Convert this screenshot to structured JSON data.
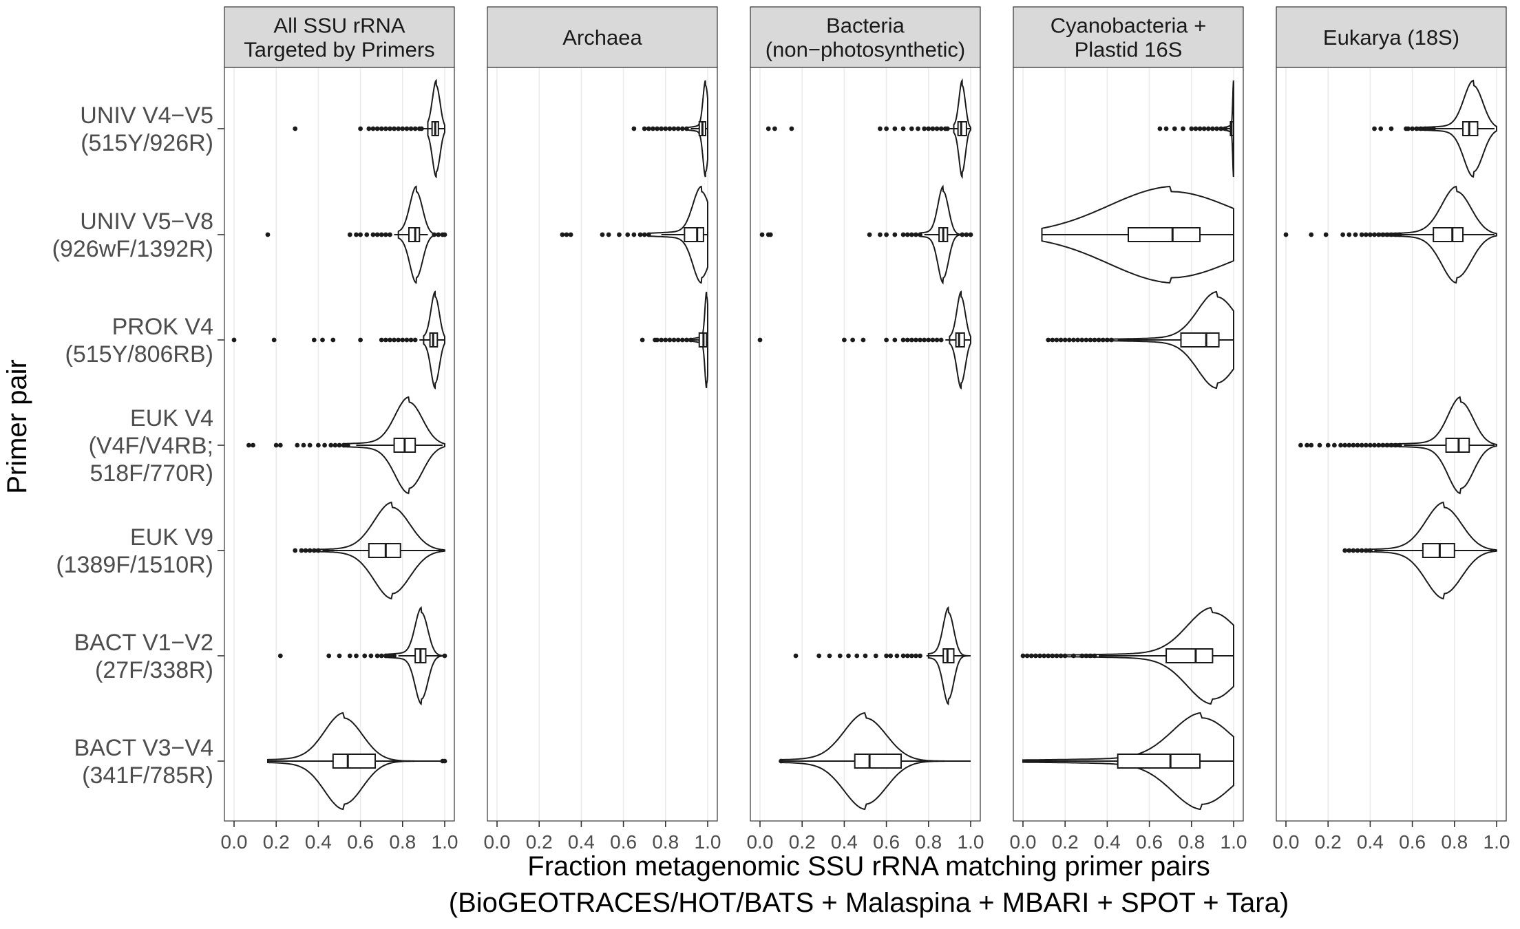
{
  "chart_data": {
    "type": "violin",
    "xlabel_lines": [
      "Fraction metagenomic SSU rRNA matching primer pairs",
      "(BioGEOTRACES/HOT/BATS + Malaspina + MBARI + SPOT + Tara)"
    ],
    "ylabel": "Primer pair",
    "xlim": [
      0,
      1
    ],
    "x_ticks": [
      "0.0",
      "0.2",
      "0.4",
      "0.6",
      "0.8",
      "1.0"
    ],
    "x_tick_values": [
      0,
      0.2,
      0.4,
      0.6,
      0.8,
      1.0
    ],
    "grid": true,
    "legend": "none",
    "facets": [
      {
        "label_lines": [
          "All SSU rRNA",
          "Targeted by Primers"
        ]
      },
      {
        "label_lines": [
          "Archaea"
        ]
      },
      {
        "label_lines": [
          "Bacteria",
          "(non−photosynthetic)"
        ]
      },
      {
        "label_lines": [
          "Cyanobacteria +",
          "Plastid 16S"
        ]
      },
      {
        "label_lines": [
          "Eukarya (18S)"
        ]
      }
    ],
    "primer_pairs": [
      {
        "label_lines": [
          "UNIV   V4−V5",
          "(515Y/926R)"
        ]
      },
      {
        "label_lines": [
          "UNIV V5−V8",
          "(926wF/1392R)"
        ]
      },
      {
        "label_lines": [
          "PROK V4",
          "(515Y/806RB)"
        ]
      },
      {
        "label_lines": [
          "EUK   V4",
          "(V4F/V4RB;",
          "518F/770R)"
        ]
      },
      {
        "label_lines": [
          "EUK V9",
          "(1389F/1510R)"
        ]
      },
      {
        "label_lines": [
          "BACT   V1−V2",
          "(27F/338R)"
        ]
      },
      {
        "label_lines": [
          "BACT V3−V4",
          "(341F/785R)"
        ]
      }
    ],
    "distributions": [
      {
        "facet": 0,
        "row": 0,
        "min": 0.92,
        "max": 1.0,
        "q1": 0.94,
        "median": 0.955,
        "q3": 0.97,
        "whisker_low": 0.9,
        "whisker_high": 1.0,
        "mode": 0.96,
        "spread": 0.018,
        "tail": 0.08,
        "outliers": [
          0.29,
          0.6,
          0.64,
          0.66,
          0.68,
          0.7,
          0.72,
          0.74,
          0.76,
          0.78,
          0.8,
          0.82,
          0.84,
          0.86,
          0.88,
          0.89
        ]
      },
      {
        "facet": 0,
        "row": 1,
        "min": 0.78,
        "max": 1.0,
        "q1": 0.83,
        "median": 0.86,
        "q3": 0.88,
        "whisker_low": 0.76,
        "whisker_high": 0.92,
        "mode": 0.865,
        "spread": 0.03,
        "tail": 0.12,
        "outliers": [
          0.16,
          0.55,
          0.58,
          0.6,
          0.63,
          0.66,
          0.68,
          0.7,
          0.72,
          0.74,
          0.95,
          0.97,
          0.99,
          1.0
        ]
      },
      {
        "facet": 0,
        "row": 2,
        "min": 0.9,
        "max": 1.0,
        "q1": 0.93,
        "median": 0.945,
        "q3": 0.965,
        "whisker_low": 0.88,
        "whisker_high": 1.0,
        "mode": 0.955,
        "spread": 0.02,
        "tail": 0.1,
        "outliers": [
          0.0,
          0.19,
          0.38,
          0.42,
          0.47,
          0.6,
          0.7,
          0.72,
          0.74,
          0.76,
          0.78,
          0.8,
          0.82,
          0.84,
          0.86
        ]
      },
      {
        "facet": 0,
        "row": 3,
        "min": 0.52,
        "max": 1.0,
        "q1": 0.76,
        "median": 0.81,
        "q3": 0.86,
        "whisker_low": 0.58,
        "whisker_high": 0.99,
        "mode": 0.83,
        "spread": 0.065,
        "tail": 0.25,
        "outliers": [
          0.07,
          0.09,
          0.2,
          0.22,
          0.3,
          0.33,
          0.36,
          0.4,
          0.43,
          0.46,
          0.48,
          0.5,
          0.52,
          0.54
        ]
      },
      {
        "facet": 0,
        "row": 4,
        "min": 0.38,
        "max": 1.0,
        "q1": 0.64,
        "median": 0.72,
        "q3": 0.79,
        "whisker_low": 0.42,
        "whisker_high": 0.99,
        "mode": 0.75,
        "spread": 0.085,
        "tail": 0.22,
        "outliers": [
          0.29,
          0.32,
          0.34,
          0.36,
          0.38,
          0.4
        ]
      },
      {
        "facet": 0,
        "row": 5,
        "min": 0.72,
        "max": 1.0,
        "q1": 0.86,
        "median": 0.885,
        "q3": 0.91,
        "whisker_low": 0.78,
        "whisker_high": 0.99,
        "mode": 0.89,
        "spread": 0.03,
        "tail": 0.14,
        "outliers": [
          0.22,
          0.45,
          0.5,
          0.55,
          0.58,
          0.62,
          0.65,
          0.68,
          0.7,
          0.72,
          0.74,
          0.76,
          1.0
        ]
      },
      {
        "facet": 0,
        "row": 6,
        "min": 0.16,
        "max": 1.0,
        "q1": 0.47,
        "median": 0.54,
        "q3": 0.67,
        "whisker_low": 0.16,
        "whisker_high": 0.99,
        "mode": 0.52,
        "spread": 0.09,
        "tail": 0.28,
        "outliers": [
          0.99,
          1.0
        ]
      },
      {
        "facet": 1,
        "row": 0,
        "min": 0.9,
        "max": 1.0,
        "q1": 0.96,
        "median": 0.975,
        "q3": 0.99,
        "whisker_low": 0.92,
        "whisker_high": 1.0,
        "mode": 0.99,
        "spread": 0.012,
        "tail": 0.06,
        "outliers": [
          0.65,
          0.7,
          0.72,
          0.74,
          0.76,
          0.78,
          0.8,
          0.82,
          0.84,
          0.86,
          0.88,
          0.9
        ]
      },
      {
        "facet": 1,
        "row": 1,
        "min": 0.72,
        "max": 1.0,
        "q1": 0.89,
        "median": 0.95,
        "q3": 0.98,
        "whisker_low": 0.78,
        "whisker_high": 1.0,
        "mode": 0.97,
        "spread": 0.04,
        "tail": 0.2,
        "outliers": [
          0.31,
          0.33,
          0.35,
          0.5,
          0.53,
          0.58,
          0.62,
          0.65,
          0.68,
          0.7,
          0.72
        ]
      },
      {
        "facet": 1,
        "row": 2,
        "min": 0.9,
        "max": 1.0,
        "q1": 0.96,
        "median": 0.98,
        "q3": 0.995,
        "whisker_low": 0.93,
        "whisker_high": 1.0,
        "mode": 0.995,
        "spread": 0.008,
        "tail": 0.05,
        "outliers": [
          0.69,
          0.75,
          0.76,
          0.78,
          0.8,
          0.82,
          0.84,
          0.86,
          0.88,
          0.9,
          0.92
        ]
      },
      {
        "facet": 2,
        "row": 0,
        "min": 0.92,
        "max": 1.0,
        "q1": 0.94,
        "median": 0.955,
        "q3": 0.98,
        "whisker_low": 0.9,
        "whisker_high": 1.0,
        "mode": 0.96,
        "spread": 0.015,
        "tail": 0.06,
        "outliers": [
          0.04,
          0.07,
          0.15,
          0.57,
          0.6,
          0.64,
          0.68,
          0.72,
          0.75,
          0.78,
          0.8,
          0.82,
          0.84,
          0.86,
          0.88,
          0.89
        ]
      },
      {
        "facet": 2,
        "row": 1,
        "min": 0.76,
        "max": 1.0,
        "q1": 0.85,
        "median": 0.87,
        "q3": 0.89,
        "whisker_low": 0.78,
        "whisker_high": 0.95,
        "mode": 0.87,
        "spread": 0.025,
        "tail": 0.1,
        "outliers": [
          0.01,
          0.04,
          0.05,
          0.52,
          0.57,
          0.6,
          0.64,
          0.68,
          0.7,
          0.72,
          0.74,
          0.76,
          0.96,
          0.98,
          1.0
        ]
      },
      {
        "facet": 2,
        "row": 2,
        "min": 0.9,
        "max": 1.0,
        "q1": 0.93,
        "median": 0.945,
        "q3": 0.97,
        "whisker_low": 0.88,
        "whisker_high": 1.0,
        "mode": 0.955,
        "spread": 0.02,
        "tail": 0.08,
        "outliers": [
          0.0,
          0.4,
          0.44,
          0.49,
          0.6,
          0.64,
          0.68,
          0.7,
          0.72,
          0.74,
          0.76,
          0.78,
          0.8,
          0.82,
          0.84,
          0.86
        ]
      },
      {
        "facet": 2,
        "row": 5,
        "min": 0.8,
        "max": 1.0,
        "q1": 0.87,
        "median": 0.89,
        "q3": 0.92,
        "whisker_low": 0.79,
        "whisker_high": 0.99,
        "mode": 0.895,
        "spread": 0.025,
        "tail": 0.1,
        "outliers": [
          0.17,
          0.28,
          0.33,
          0.38,
          0.42,
          0.46,
          0.5,
          0.55,
          0.6,
          0.62,
          0.65,
          0.68,
          0.7,
          0.72,
          0.74,
          0.76
        ]
      },
      {
        "facet": 2,
        "row": 6,
        "min": 0.1,
        "max": 1.0,
        "q1": 0.45,
        "median": 0.52,
        "q3": 0.67,
        "whisker_low": 0.11,
        "whisker_high": 0.99,
        "mode": 0.5,
        "spread": 0.1,
        "tail": 0.3,
        "outliers": [
          0.1
        ]
      },
      {
        "facet": 3,
        "row": 0,
        "min": 0.95,
        "max": 1.0,
        "q1": 0.985,
        "median": 0.99,
        "q3": 1.0,
        "whisker_low": 0.97,
        "whisker_high": 1.0,
        "mode": 1.0,
        "spread": 0.004,
        "tail": 0.03,
        "outliers": [
          0.65,
          0.68,
          0.72,
          0.76,
          0.8,
          0.82,
          0.84,
          0.86,
          0.88,
          0.9,
          0.92,
          0.94,
          0.96
        ]
      },
      {
        "facet": 3,
        "row": 1,
        "min": 0.09,
        "max": 1.0,
        "q1": 0.5,
        "median": 0.71,
        "q3": 0.84,
        "whisker_low": 0.09,
        "whisker_high": 1.0,
        "mode": 0.7,
        "spread": 0.3,
        "tail": 0.35,
        "outliers": []
      },
      {
        "facet": 3,
        "row": 2,
        "min": 0.3,
        "max": 1.0,
        "q1": 0.75,
        "median": 0.87,
        "q3": 0.93,
        "whisker_low": 0.45,
        "whisker_high": 1.0,
        "mode": 0.92,
        "spread": 0.09,
        "tail": 0.28,
        "outliers": [
          0.12,
          0.14,
          0.16,
          0.18,
          0.2,
          0.22,
          0.24,
          0.26,
          0.28,
          0.3,
          0.32,
          0.34,
          0.36,
          0.38,
          0.4,
          0.42
        ]
      },
      {
        "facet": 3,
        "row": 5,
        "min": 0.0,
        "max": 1.0,
        "q1": 0.68,
        "median": 0.82,
        "q3": 0.9,
        "whisker_low": 0.36,
        "whisker_high": 1.0,
        "mode": 0.9,
        "spread": 0.12,
        "tail": 0.4,
        "outliers": [
          0.0,
          0.02,
          0.04,
          0.06,
          0.08,
          0.1,
          0.12,
          0.14,
          0.16,
          0.18,
          0.2,
          0.24,
          0.28,
          0.3,
          0.32,
          0.34
        ]
      },
      {
        "facet": 3,
        "row": 6,
        "min": 0.0,
        "max": 1.0,
        "q1": 0.45,
        "median": 0.7,
        "q3": 0.84,
        "whisker_low": 0.0,
        "whisker_high": 1.0,
        "mode": 0.85,
        "spread": 0.14,
        "tail": 0.55,
        "outliers": []
      },
      {
        "facet": 4,
        "row": 0,
        "min": 0.62,
        "max": 1.0,
        "q1": 0.84,
        "median": 0.87,
        "q3": 0.91,
        "whisker_low": 0.7,
        "whisker_high": 0.99,
        "mode": 0.89,
        "spread": 0.045,
        "tail": 0.18,
        "outliers": [
          0.42,
          0.45,
          0.5,
          0.57,
          0.58,
          0.6,
          0.62,
          0.64,
          0.66,
          0.68,
          0.7
        ]
      },
      {
        "facet": 4,
        "row": 1,
        "min": 0.45,
        "max": 1.0,
        "q1": 0.7,
        "median": 0.79,
        "q3": 0.84,
        "whisker_low": 0.55,
        "whisker_high": 0.99,
        "mode": 0.81,
        "spread": 0.07,
        "tail": 0.22,
        "outliers": [
          0.0,
          0.12,
          0.19,
          0.27,
          0.3,
          0.33,
          0.36,
          0.38,
          0.4,
          0.42,
          0.44,
          0.46,
          0.48,
          0.5,
          0.52,
          0.54
        ]
      },
      {
        "facet": 4,
        "row": 3,
        "min": 0.45,
        "max": 1.0,
        "q1": 0.76,
        "median": 0.82,
        "q3": 0.87,
        "whisker_low": 0.56,
        "whisker_high": 0.99,
        "mode": 0.83,
        "spread": 0.06,
        "tail": 0.22,
        "outliers": [
          0.07,
          0.1,
          0.12,
          0.16,
          0.2,
          0.23,
          0.26,
          0.28,
          0.3,
          0.32,
          0.34,
          0.36,
          0.38,
          0.4,
          0.42,
          0.44,
          0.46,
          0.48,
          0.5,
          0.52,
          0.54
        ]
      },
      {
        "facet": 4,
        "row": 4,
        "min": 0.38,
        "max": 1.0,
        "q1": 0.65,
        "median": 0.73,
        "q3": 0.8,
        "whisker_low": 0.42,
        "whisker_high": 0.99,
        "mode": 0.75,
        "spread": 0.085,
        "tail": 0.24,
        "outliers": [
          0.28,
          0.3,
          0.32,
          0.34,
          0.36,
          0.38,
          0.4
        ]
      }
    ]
  }
}
